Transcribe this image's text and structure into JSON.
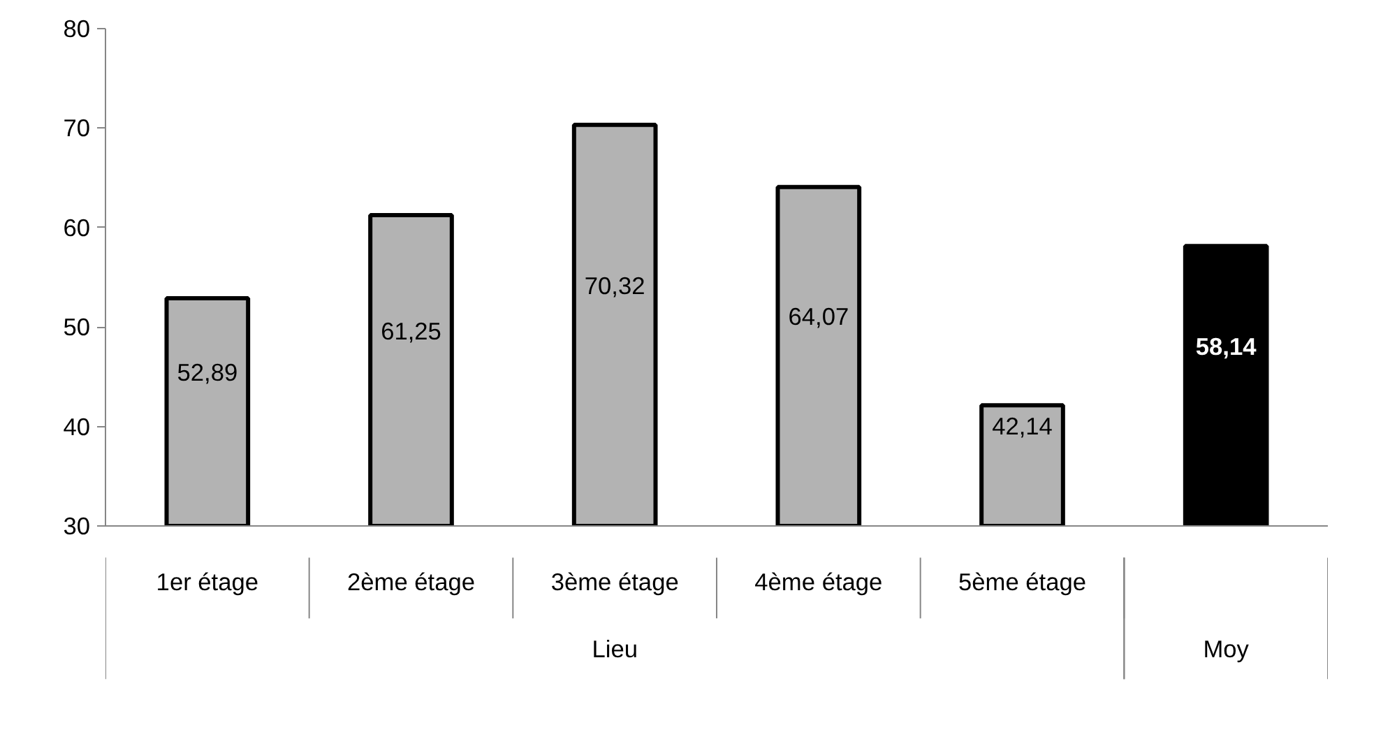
{
  "chart_data": {
    "type": "bar",
    "categories": [
      "1er étage",
      "2ème étage",
      "3ème étage",
      "4ème étage",
      "5ème étage",
      null
    ],
    "values": [
      52.89,
      61.25,
      70.32,
      64.07,
      42.14,
      58.14
    ],
    "value_labels": [
      "52,89",
      "61,25",
      "70,32",
      "64,07",
      "42,14",
      "58,14"
    ],
    "colors": [
      "#b3b3b3",
      "#b3b3b3",
      "#b3b3b3",
      "#b3b3b3",
      "#b3b3b3",
      "#000000"
    ],
    "annotations": [
      "Lieu",
      "Moy"
    ],
    "ylim": [
      30,
      80
    ],
    "yticks": [
      30,
      40,
      50,
      60,
      70,
      80
    ],
    "grid": false
  }
}
